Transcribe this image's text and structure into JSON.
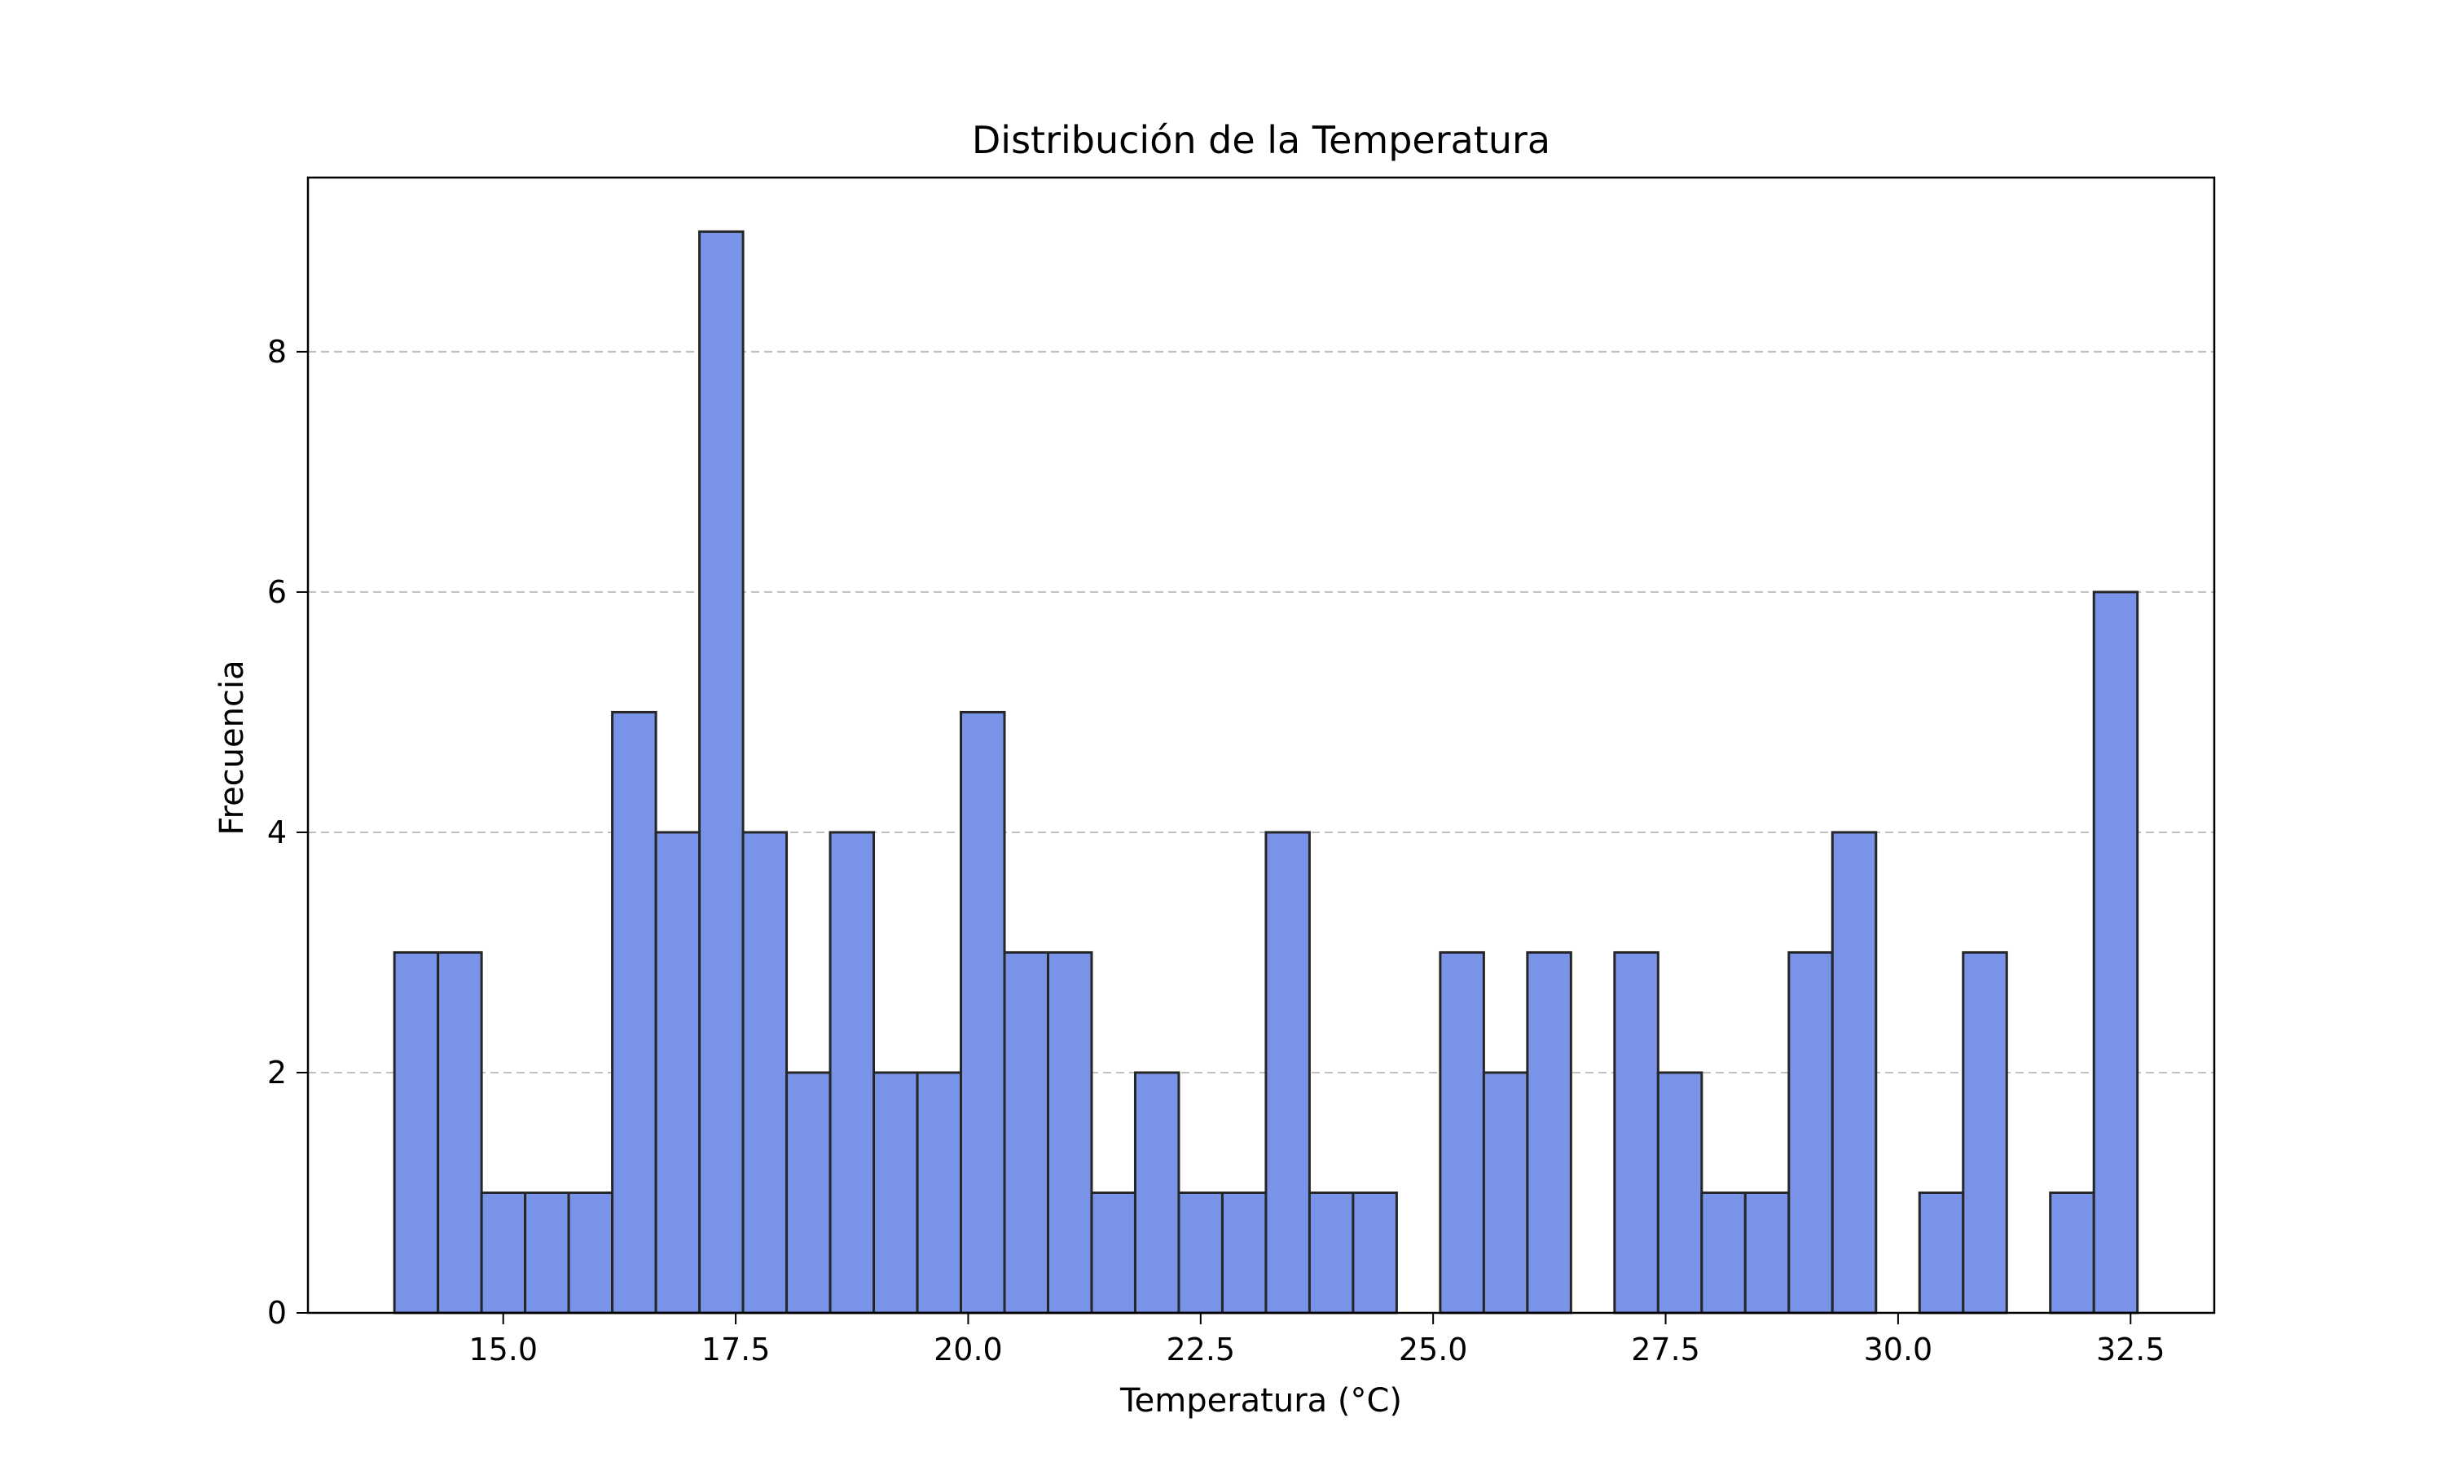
{
  "chart_data": {
    "type": "bar",
    "title": "Distribución de la Temperatura",
    "xlabel": "Temperatura (°C)",
    "ylabel": "Frecuencia",
    "bar_color": "#7893e8",
    "edge_color": "#262626",
    "grid": "y-dashed",
    "xlim": [
      12.9,
      33.4
    ],
    "ylim": [
      0,
      9.45
    ],
    "x_ticks": [
      15.0,
      17.5,
      20.0,
      22.5,
      25.0,
      27.5,
      30.0,
      32.5
    ],
    "x_tick_labels": [
      "15.0",
      "17.5",
      "20.0",
      "22.5",
      "25.0",
      "27.5",
      "30.0",
      "32.5"
    ],
    "y_ticks": [
      0,
      2,
      4,
      6,
      8
    ],
    "y_tick_labels": [
      "0",
      "2",
      "4",
      "6",
      "8"
    ],
    "bin_start": 13.83,
    "bin_width": 0.4686,
    "counts": [
      3,
      3,
      1,
      1,
      1,
      5,
      4,
      9,
      4,
      2,
      4,
      2,
      2,
      5,
      3,
      3,
      1,
      2,
      1,
      1,
      4,
      1,
      1,
      0,
      3,
      2,
      3,
      0,
      3,
      2,
      1,
      1,
      3,
      4,
      0,
      1,
      3,
      0,
      1,
      6
    ]
  }
}
